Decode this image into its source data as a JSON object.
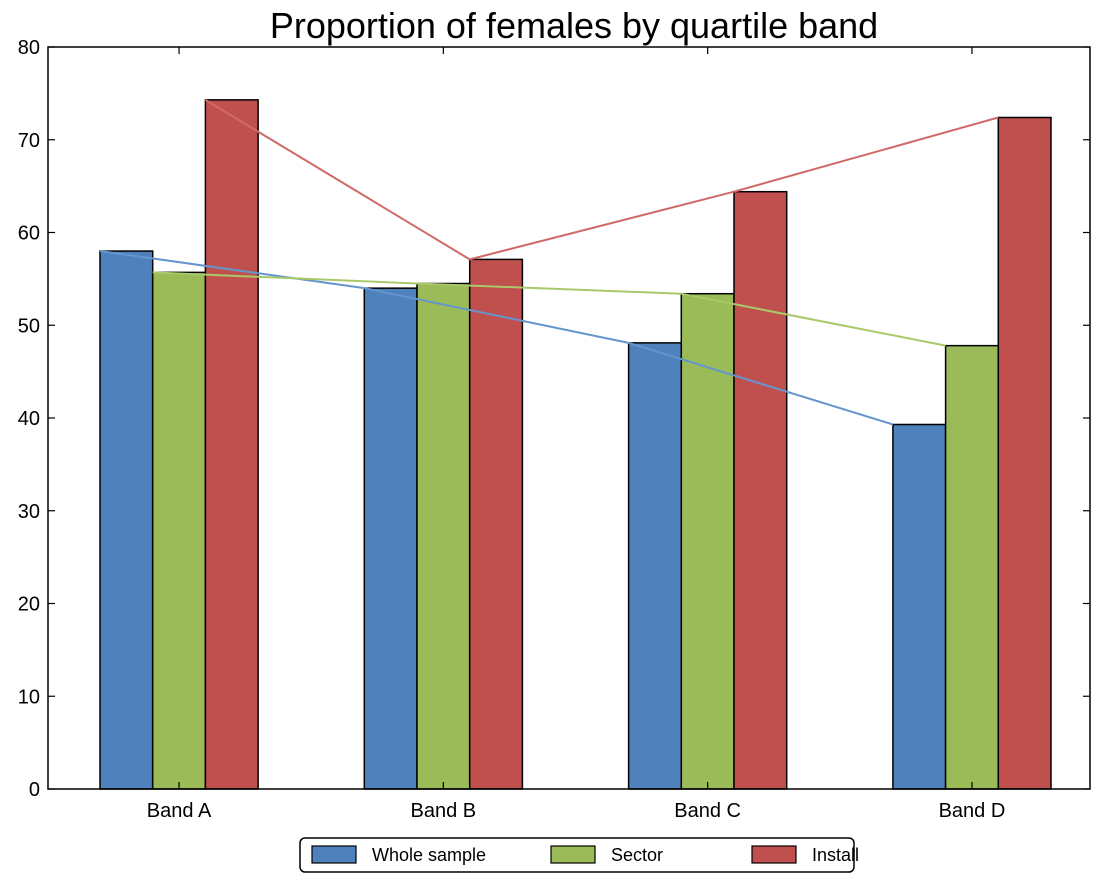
{
  "chart_data": {
    "type": "bar",
    "title": "Proportion of females by quartile band",
    "xlabel": "",
    "ylabel": "",
    "categories": [
      "Band A",
      "Band B",
      "Band C",
      "Band D"
    ],
    "series": [
      {
        "name": "Whole sample",
        "values": [
          58.0,
          54.0,
          48.1,
          39.3
        ],
        "color": "#4f81bd"
      },
      {
        "name": "Sector",
        "values": [
          55.7,
          54.5,
          53.4,
          47.8
        ],
        "color": "#9bbb59"
      },
      {
        "name": "Install",
        "values": [
          74.3,
          57.1,
          64.4,
          72.4
        ],
        "color": "#c0504d"
      }
    ],
    "trend_lines": [
      {
        "series": "Whole sample",
        "values": [
          58.0,
          54.0,
          48.1,
          39.3
        ],
        "color": "#6495cd"
      },
      {
        "series": "Sector",
        "values": [
          55.7,
          54.5,
          53.4,
          47.8
        ],
        "color": "#a9c86a"
      },
      {
        "series": "Install",
        "values": [
          74.3,
          57.1,
          64.4,
          72.4
        ],
        "color": "#d06a67"
      }
    ],
    "ylim": [
      0,
      80
    ],
    "yticks": [
      "0",
      "10",
      "20",
      "30",
      "40",
      "50",
      "60",
      "70",
      "80"
    ],
    "grid": false,
    "legend_position": "bottom-center"
  }
}
